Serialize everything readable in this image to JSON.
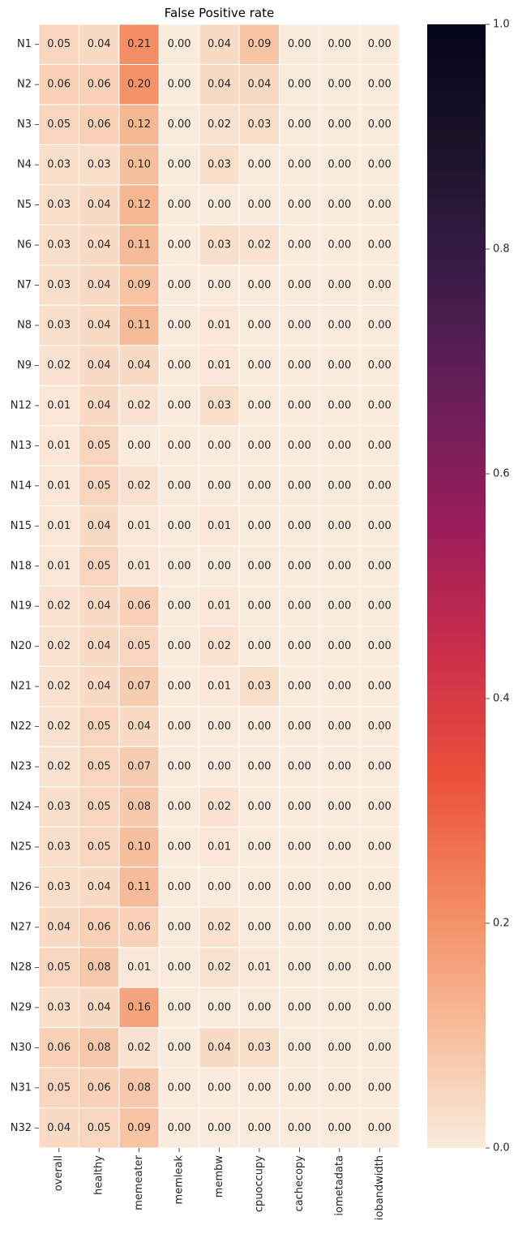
{
  "chart_data": {
    "type": "heatmap",
    "title": "False Positive rate",
    "columns": [
      "overall",
      "healthy",
      "memeater",
      "memleak",
      "membw",
      "cpuoccupy",
      "cachecopy",
      "iometadata",
      "iobandwidth"
    ],
    "rows": [
      "N1",
      "N2",
      "N3",
      "N4",
      "N5",
      "N6",
      "N7",
      "N8",
      "N9",
      "N12",
      "N13",
      "N14",
      "N15",
      "N18",
      "N19",
      "N20",
      "N21",
      "N22",
      "N23",
      "N24",
      "N25",
      "N26",
      "N27",
      "N28",
      "N29",
      "N30",
      "N31",
      "N32"
    ],
    "values": [
      [
        0.05,
        0.04,
        0.21,
        0.0,
        0.04,
        0.09,
        0.0,
        0.0,
        0.0
      ],
      [
        0.06,
        0.06,
        0.2,
        0.0,
        0.04,
        0.04,
        0.0,
        0.0,
        0.0
      ],
      [
        0.05,
        0.06,
        0.12,
        0.0,
        0.02,
        0.03,
        0.0,
        0.0,
        0.0
      ],
      [
        0.03,
        0.03,
        0.1,
        0.0,
        0.03,
        0.0,
        0.0,
        0.0,
        0.0
      ],
      [
        0.03,
        0.04,
        0.12,
        0.0,
        0.0,
        0.0,
        0.0,
        0.0,
        0.0
      ],
      [
        0.03,
        0.04,
        0.11,
        0.0,
        0.03,
        0.02,
        0.0,
        0.0,
        0.0
      ],
      [
        0.03,
        0.04,
        0.09,
        0.0,
        0.0,
        0.0,
        0.0,
        0.0,
        0.0
      ],
      [
        0.03,
        0.04,
        0.11,
        0.0,
        0.01,
        0.0,
        0.0,
        0.0,
        0.0
      ],
      [
        0.02,
        0.04,
        0.04,
        0.0,
        0.01,
        0.0,
        0.0,
        0.0,
        0.0
      ],
      [
        0.01,
        0.04,
        0.02,
        0.0,
        0.03,
        0.0,
        0.0,
        0.0,
        0.0
      ],
      [
        0.01,
        0.05,
        0.0,
        0.0,
        0.0,
        0.0,
        0.0,
        0.0,
        0.0
      ],
      [
        0.01,
        0.05,
        0.02,
        0.0,
        0.0,
        0.0,
        0.0,
        0.0,
        0.0
      ],
      [
        0.01,
        0.04,
        0.01,
        0.0,
        0.01,
        0.0,
        0.0,
        0.0,
        0.0
      ],
      [
        0.01,
        0.05,
        0.01,
        0.0,
        0.0,
        0.0,
        0.0,
        0.0,
        0.0
      ],
      [
        0.02,
        0.04,
        0.06,
        0.0,
        0.01,
        0.0,
        0.0,
        0.0,
        0.0
      ],
      [
        0.02,
        0.04,
        0.05,
        0.0,
        0.02,
        0.0,
        0.0,
        0.0,
        0.0
      ],
      [
        0.02,
        0.04,
        0.07,
        0.0,
        0.01,
        0.03,
        0.0,
        0.0,
        0.0
      ],
      [
        0.02,
        0.05,
        0.04,
        0.0,
        0.0,
        0.0,
        0.0,
        0.0,
        0.0
      ],
      [
        0.02,
        0.05,
        0.07,
        0.0,
        0.0,
        0.0,
        0.0,
        0.0,
        0.0
      ],
      [
        0.03,
        0.05,
        0.08,
        0.0,
        0.02,
        0.0,
        0.0,
        0.0,
        0.0
      ],
      [
        0.03,
        0.05,
        0.1,
        0.0,
        0.01,
        0.0,
        0.0,
        0.0,
        0.0
      ],
      [
        0.03,
        0.04,
        0.11,
        0.0,
        0.0,
        0.0,
        0.0,
        0.0,
        0.0
      ],
      [
        0.04,
        0.06,
        0.06,
        0.0,
        0.02,
        0.0,
        0.0,
        0.0,
        0.0
      ],
      [
        0.05,
        0.08,
        0.01,
        0.0,
        0.02,
        0.01,
        0.0,
        0.0,
        0.0
      ],
      [
        0.03,
        0.04,
        0.16,
        0.0,
        0.0,
        0.0,
        0.0,
        0.0,
        0.0
      ],
      [
        0.06,
        0.08,
        0.02,
        0.0,
        0.04,
        0.03,
        0.0,
        0.0,
        0.0
      ],
      [
        0.05,
        0.06,
        0.08,
        0.0,
        0.0,
        0.0,
        0.0,
        0.0,
        0.0
      ],
      [
        0.04,
        0.05,
        0.09,
        0.0,
        0.0,
        0.0,
        0.0,
        0.0,
        0.0
      ]
    ],
    "value_format": "0.00",
    "colorbar": {
      "range": [
        0.0,
        1.0
      ],
      "ticks": [
        0.0,
        0.2,
        0.4,
        0.6,
        0.8,
        1.0
      ],
      "tick_labels": [
        "0.0",
        "0.2",
        "0.4",
        "0.6",
        "0.8",
        "1.0"
      ],
      "colormap": "rocket_r",
      "colormap_stops": [
        "#faebdd",
        "#f6bb97",
        "#f3885f",
        "#ea4f3b",
        "#c92d4b",
        "#991d5a",
        "#691e5a",
        "#3a1b48",
        "#1b1429",
        "#03051a"
      ]
    },
    "grid": false,
    "cell_separator_color": "#ffffff"
  }
}
